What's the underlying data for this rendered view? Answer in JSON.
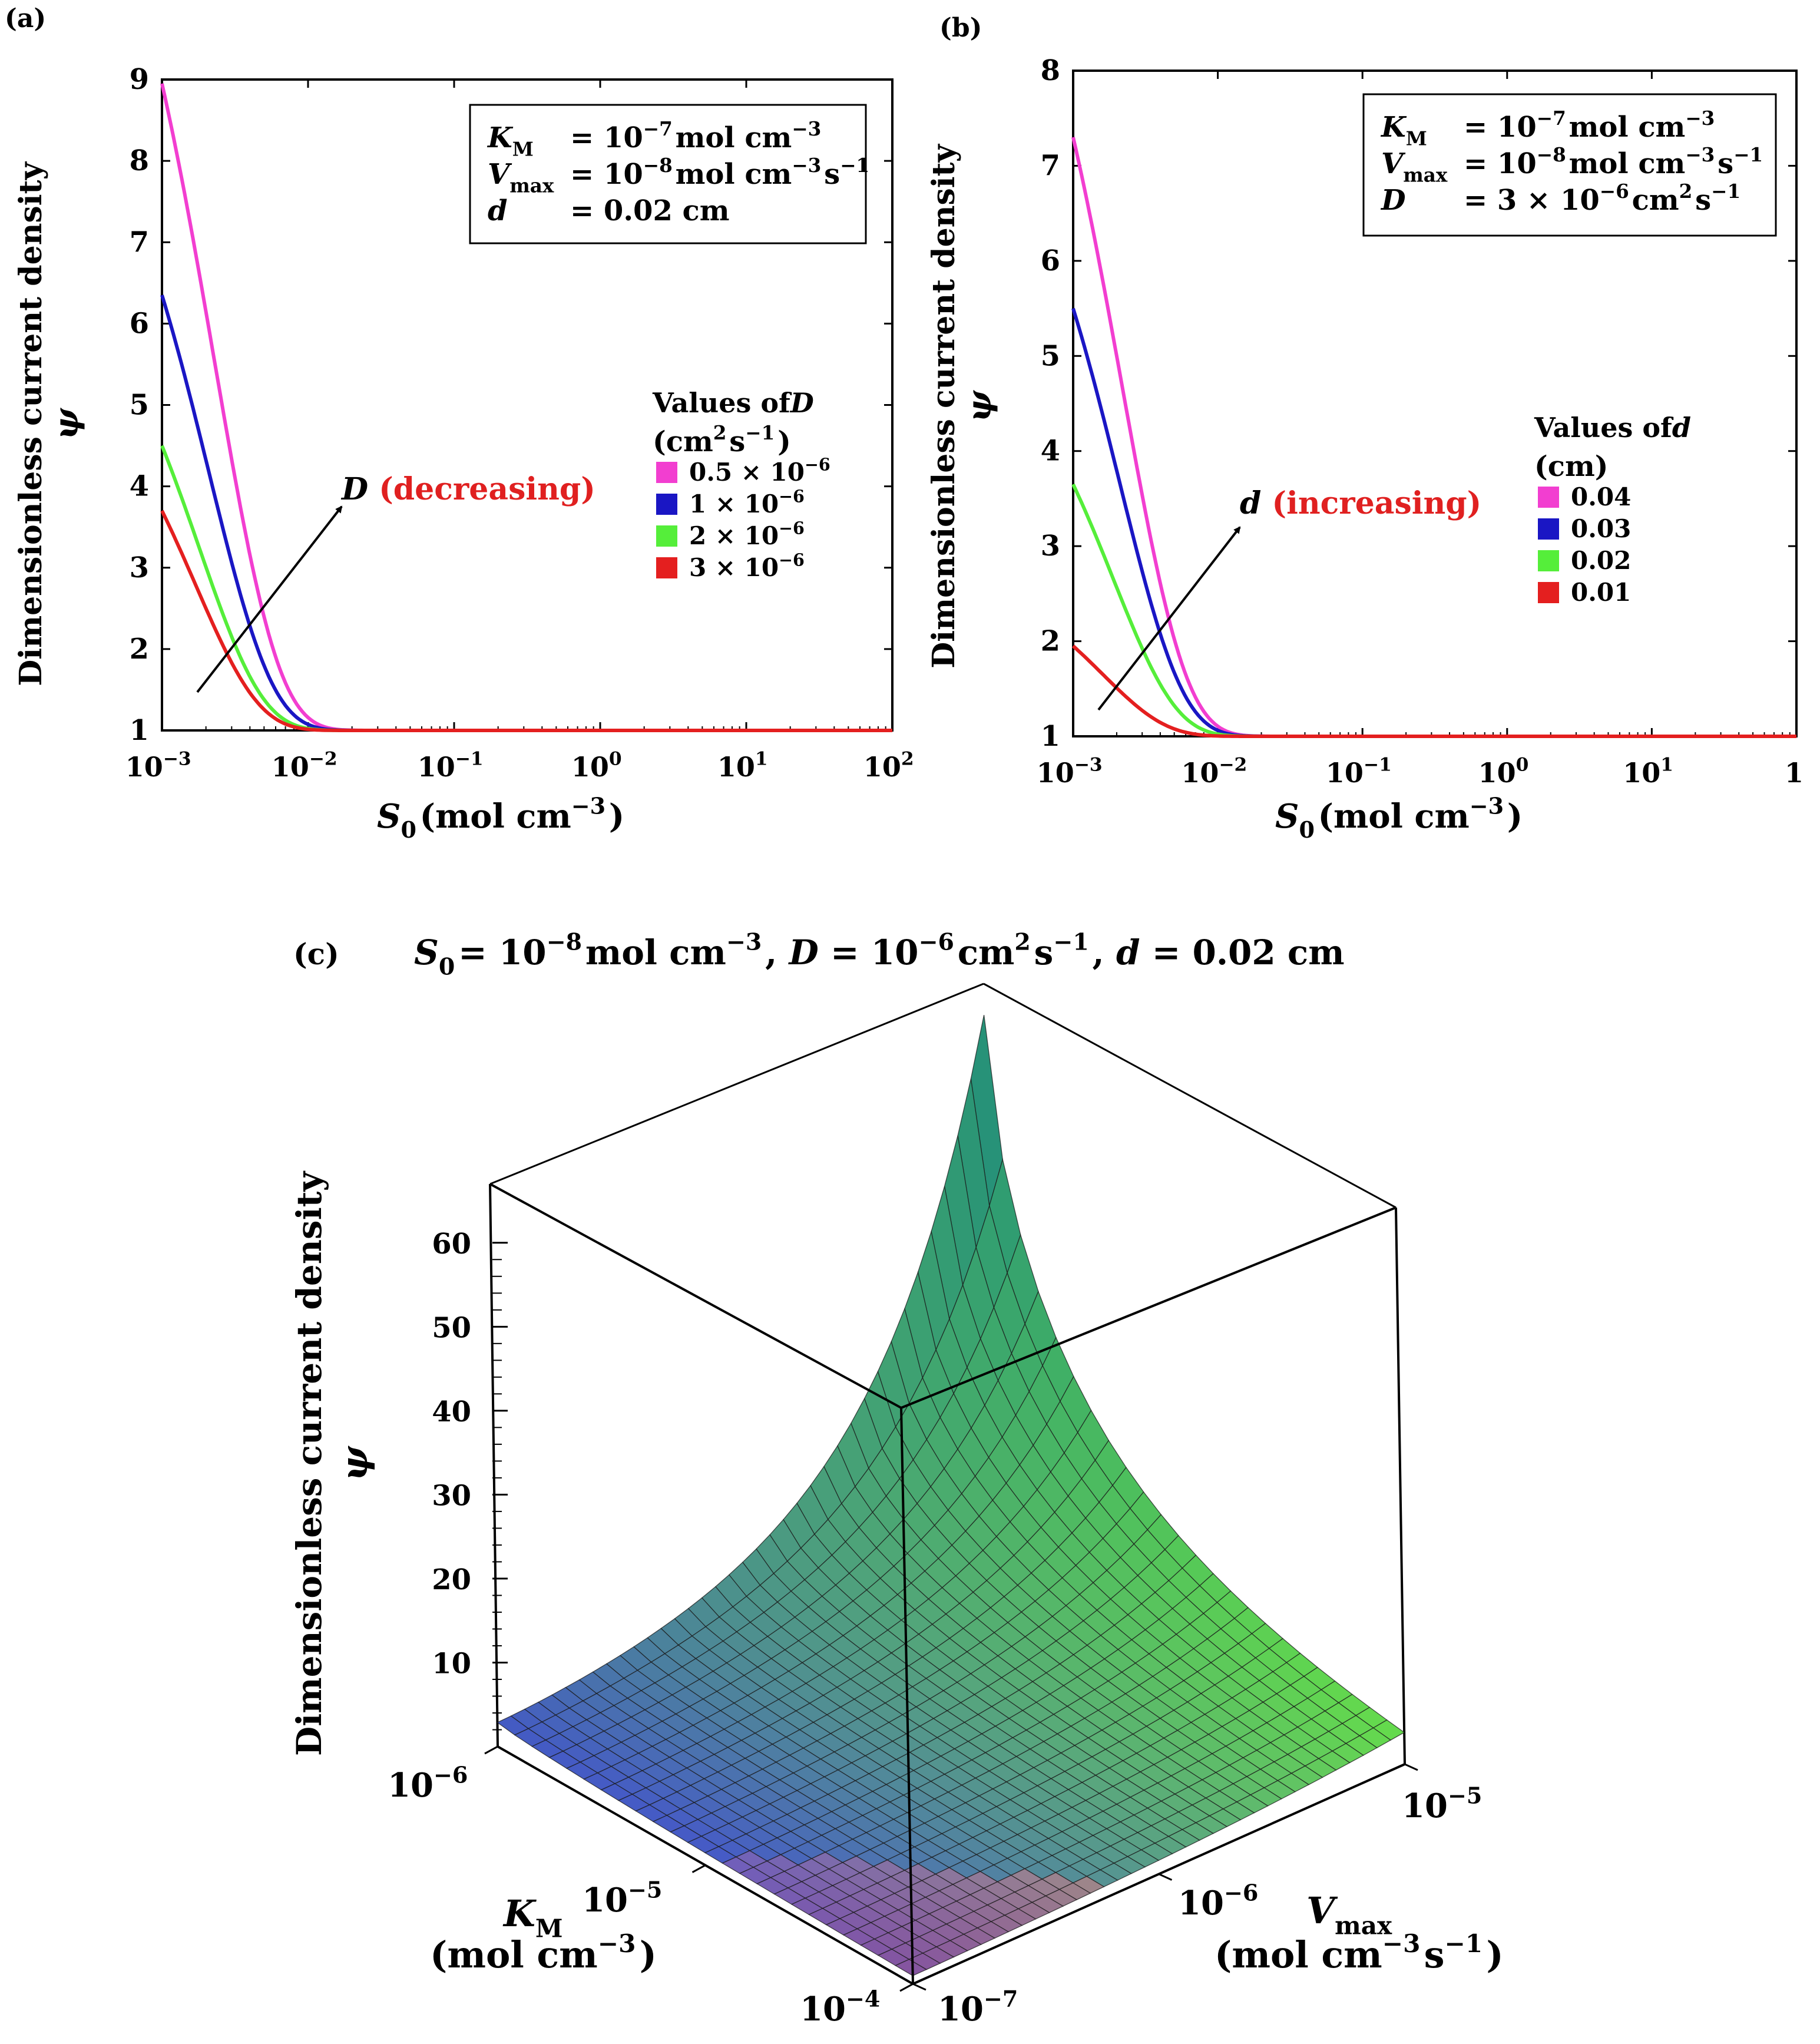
{
  "chart_data": [
    {
      "panel": "(a)",
      "type": "line",
      "xscale": "log",
      "xlim_exp": [
        -3,
        2
      ],
      "ylim": [
        1,
        9
      ],
      "xtick_labels": [
        "10",
        "10",
        "10",
        "10",
        "10",
        "10"
      ],
      "xtick_exps": [
        "−3",
        "−2",
        "−1",
        "0",
        "1",
        "2"
      ],
      "yticks": [
        "1",
        "2",
        "3",
        "4",
        "5",
        "6",
        "7",
        "8",
        "9"
      ],
      "xlabel_sym": "S",
      "xlabel_sub": "0",
      "xlabel_unit": "(mol cm",
      "xlabel_unit_exp": "−3",
      "xlabel_close": ")",
      "ylabel_line1": "Dimensionless current density",
      "ylabel_line2": "ψ",
      "params": [
        {
          "sym": "K",
          "sub": "M",
          "eq": "= 10",
          "exp": "−7",
          "rest": "mol cm",
          "rest_exp": "−3",
          "tail": ""
        },
        {
          "sym": "V",
          "sub": "max",
          "eq": "= 10",
          "exp": "−8",
          "rest": "mol cm",
          "rest_exp": "−3",
          "tail": "s",
          "tail_exp": "−1"
        },
        {
          "sym": "d",
          "sub": "",
          "eq": "= 0.02 cm",
          "exp": "",
          "rest": "",
          "rest_exp": "",
          "tail": ""
        }
      ],
      "legend_title1": "Values of",
      "legend_title_var": "D",
      "legend_title2": "(cm",
      "legend_title2_exp": "2",
      "legend_title2_s": "s",
      "legend_title2_sexp": "−1",
      "legend_title2_close": ")",
      "annotation_var": "D",
      "annotation_text": "(decreasing)",
      "series": [
        {
          "name": "0.5 × 10",
          "exp": "−6",
          "color": "#f23ed0",
          "y0": 8.95,
          "decay": 0.0023
        },
        {
          "name": "1 × 10",
          "exp": "−6",
          "color": "#1a16c4",
          "y0": 6.35,
          "decay": 0.0021
        },
        {
          "name": "2 × 10",
          "exp": "−6",
          "color": "#55ee3a",
          "y0": 4.5,
          "decay": 0.0018
        },
        {
          "name": "3 × 10",
          "exp": "−6",
          "color": "#e41f1f",
          "y0": 3.7,
          "decay": 0.0017
        }
      ]
    },
    {
      "panel": "(b)",
      "type": "line",
      "xscale": "log",
      "xlim_exp": [
        -3,
        2
      ],
      "ylim": [
        1,
        8
      ],
      "xtick_labels": [
        "10",
        "10",
        "10",
        "10",
        "10",
        "1"
      ],
      "xtick_exps": [
        "−3",
        "−2",
        "−1",
        "0",
        "1",
        ""
      ],
      "yticks": [
        "1",
        "2",
        "3",
        "4",
        "5",
        "6",
        "7",
        "8"
      ],
      "xlabel_sym": "S",
      "xlabel_sub": "0",
      "xlabel_unit": "(mol cm",
      "xlabel_unit_exp": "−3",
      "xlabel_close": ")",
      "ylabel_line1": "Dimensionless current density",
      "ylabel_line2": "ψ",
      "params": [
        {
          "sym": "K",
          "sub": "M",
          "eq": "= 10",
          "exp": "−7",
          "rest": "mol cm",
          "rest_exp": "−3",
          "tail": ""
        },
        {
          "sym": "V",
          "sub": "max",
          "eq": "= 10",
          "exp": "−8",
          "rest": "mol cm",
          "rest_exp": "−3",
          "tail": "s",
          "tail_exp": "−1"
        },
        {
          "sym": "D",
          "sub": "",
          "eq": "= 3 × 10",
          "exp": "−6",
          "rest": "cm",
          "rest_exp": "2",
          "tail": "s",
          "tail_exp": "−1"
        }
      ],
      "legend_title1": "Values of",
      "legend_title_var": "d",
      "legend_title2": "(cm)",
      "annotation_var": "d",
      "annotation_text": "(increasing)",
      "series": [
        {
          "name": "0.04",
          "color": "#f23ed0",
          "y0": 7.3,
          "decay": 0.0022
        },
        {
          "name": "0.03",
          "color": "#1a16c4",
          "y0": 5.5,
          "decay": 0.0021
        },
        {
          "name": "0.02",
          "color": "#55ee3a",
          "y0": 3.65,
          "decay": 0.0019
        },
        {
          "name": "0.01",
          "color": "#e41f1f",
          "y0": 1.95,
          "decay": 0.0016
        }
      ]
    },
    {
      "panel": "(c)",
      "type": "surface",
      "title_sym": "S",
      "title_sub": "0",
      "title_eq1": "= 10",
      "title_exp1": "−8",
      "title_unit1": "mol cm",
      "title_unit1_exp": "−3",
      "title_sep1": ", ",
      "title_D": "D",
      "title_eq2": " = 10",
      "title_exp2": "−6",
      "title_unit2": "cm",
      "title_unit2_exp": "2",
      "title_unit2_s": "s",
      "title_unit2_sexp": "−1",
      "title_sep2": ", ",
      "title_d": "d",
      "title_eq3": " = 0.02 cm",
      "zlim": [
        0,
        70
      ],
      "zticks": [
        "10",
        "20",
        "30",
        "40",
        "50",
        "60"
      ],
      "km_ticks": [
        {
          "b": "10",
          "e": "−6"
        },
        {
          "b": "10",
          "e": "−5"
        },
        {
          "b": "10",
          "e": "−4"
        }
      ],
      "vmax_ticks": [
        {
          "b": "10",
          "e": "−7"
        },
        {
          "b": "10",
          "e": "−6"
        },
        {
          "b": "10",
          "e": "−5"
        }
      ],
      "km_label_sym": "K",
      "km_label_sub": "M",
      "km_label_unit": "(mol cm",
      "km_label_unit_exp": "−3",
      "km_label_close": ")",
      "vmax_label_sym": "V",
      "vmax_label_sub": "max",
      "vmax_label_unit": "(mol cm",
      "vmax_label_unit_exp": "−3",
      "vmax_label_s": "s",
      "vmax_label_sexp": "−1",
      "vmax_label_close": ")",
      "zlabel_line1": "Dimensionless  current  density",
      "zlabel_line2": "ψ",
      "corner_values": {
        "Km_low_Vmax_low": 3,
        "Km_low_Vmax_high": 66,
        "Km_high_Vmax_low": 1,
        "Km_high_Vmax_high": 4
      }
    }
  ],
  "panel_labels": {
    "a": "(a)",
    "b": "(b)",
    "c": "(c)"
  }
}
